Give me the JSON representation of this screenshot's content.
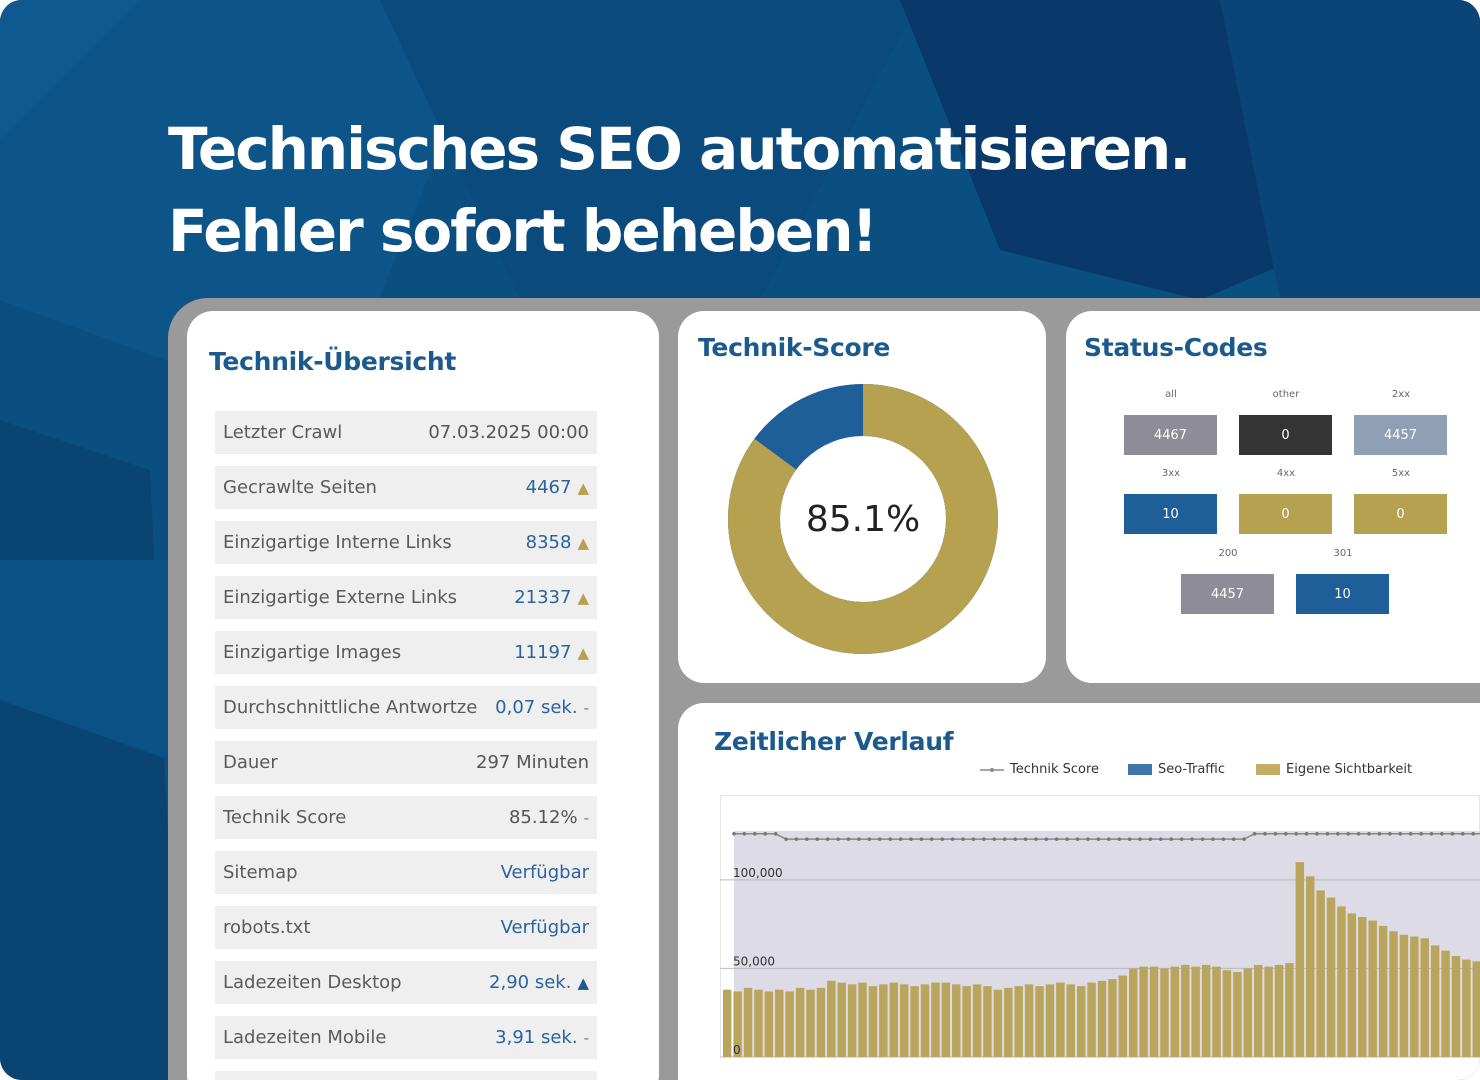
{
  "headline": {
    "line1": "Technisches SEO automatisieren.",
    "line2": "Fehler sofort beheben!"
  },
  "overview": {
    "title": "Technik-Übersicht",
    "rows": [
      {
        "label": "Letzter Crawl",
        "value": "07.03.2025 00:00",
        "trend": ""
      },
      {
        "label": "Gecrawlte Seiten",
        "value": "4467",
        "trend": "▲"
      },
      {
        "label": "Einzigartige Interne Links",
        "value": "8358",
        "trend": "▲"
      },
      {
        "label": "Einzigartige Externe Links",
        "value": "21337",
        "trend": "▲"
      },
      {
        "label": "Einzigartige Images",
        "value": "11197",
        "trend": "▲"
      },
      {
        "label": "Durchschnittliche Antwortze",
        "value": "0,07 sek.",
        "trend": "-"
      },
      {
        "label": "Dauer",
        "value": "297 Minuten",
        "trend": ""
      },
      {
        "label": "Technik Score",
        "value": "85.12%",
        "trend": "-"
      },
      {
        "label": "Sitemap",
        "value": "Verfügbar",
        "trend": ""
      },
      {
        "label": "robots.txt",
        "value": "Verfügbar",
        "trend": ""
      },
      {
        "label": "Ladezeiten Desktop",
        "value": "2,90 sek.",
        "trend": "▲"
      },
      {
        "label": "Ladezeiten Mobile",
        "value": "3,91 sek.",
        "trend": "-"
      }
    ]
  },
  "score": {
    "title": "Technik-Score",
    "value_text": "85.1%",
    "value": 85.1,
    "colors": {
      "score": "#b5a150",
      "rest": "#1f5f99"
    }
  },
  "status": {
    "title": "Status-Codes",
    "codes": [
      {
        "label": "all",
        "value": "4467",
        "color": "#8e8c96"
      },
      {
        "label": "other",
        "value": "0",
        "color": "#343434"
      },
      {
        "label": "2xx",
        "value": "4457",
        "color": "#8fa0b6"
      },
      {
        "label": "3xx",
        "value": "10",
        "color": "#1f5f99"
      },
      {
        "label": "4xx",
        "value": "0",
        "color": "#b5a150"
      },
      {
        "label": "5xx",
        "value": "0",
        "color": "#b5a150"
      },
      {
        "label": "200",
        "value": "4457",
        "color": "#8e8c96"
      },
      {
        "label": "301",
        "value": "10",
        "color": "#1f5f99"
      }
    ]
  },
  "timeline": {
    "title": "Zeitlicher Verlauf",
    "legend": [
      "Technik Score",
      "Seo-Traffic",
      "Eigene Sichtbarkeit"
    ],
    "legend_colors": [
      "#888888",
      "#3f77aa",
      "#c3ae64"
    ],
    "tick_labels": [
      "100,000",
      "50,000",
      "0"
    ],
    "chart_data": {
      "type": "bar",
      "series": [
        {
          "name": "Eigene Sichtbarkeit",
          "values": [
            38000,
            37000,
            39000,
            38000,
            37000,
            38000,
            37000,
            39000,
            38000,
            39000,
            43000,
            42000,
            41000,
            42000,
            40000,
            41000,
            42000,
            41000,
            40000,
            41000,
            42000,
            42000,
            41000,
            40000,
            41000,
            40000,
            38000,
            39000,
            40000,
            41000,
            40000,
            41000,
            42000,
            41000,
            40000,
            42000,
            43000,
            44000,
            46000,
            50000,
            51000,
            51000,
            50000,
            51000,
            52000,
            51000,
            52000,
            51000,
            49000,
            48000,
            50000,
            52000,
            51000,
            52000,
            53000,
            110000,
            102000,
            94000,
            90000,
            85000,
            81000,
            79000,
            77000,
            74000,
            71000,
            69000,
            68000,
            67000,
            63000,
            60000,
            57000,
            55000,
            54000
          ]
        },
        {
          "name": "Technik Score",
          "values": [
            126000,
            126000,
            126000,
            126000,
            126000,
            123000,
            123000,
            123000,
            123000,
            123000,
            123000,
            123000,
            123000,
            123000,
            123000,
            123000,
            123000,
            123000,
            123000,
            123000,
            123000,
            123000,
            123000,
            123000,
            123000,
            123000,
            123000,
            123000,
            123000,
            123000,
            123000,
            123000,
            123000,
            123000,
            123000,
            123000,
            123000,
            123000,
            123000,
            123000,
            123000,
            123000,
            123000,
            123000,
            123000,
            123000,
            123000,
            123000,
            123000,
            123000,
            126000,
            126000,
            126000,
            126000,
            126000,
            126000,
            126000,
            126000,
            126000,
            126000,
            126000,
            126000,
            126000,
            126000,
            126000,
            126000,
            126000,
            126000,
            126000,
            126000,
            126000,
            126000,
            126000
          ]
        }
      ],
      "ylim": [
        0,
        140000
      ]
    }
  }
}
